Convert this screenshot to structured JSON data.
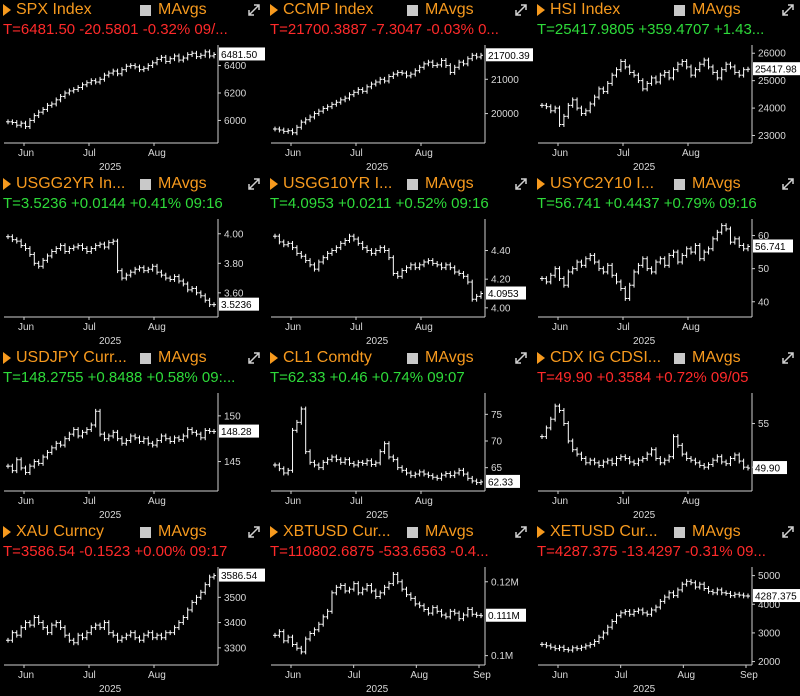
{
  "panels": [
    {
      "ticker": "SPX Index",
      "mavgs": "MAvgs",
      "quote": "T=6481.50 -20.5801 -0.32% 09/...",
      "dir": "dn",
      "y_ticks": [
        "6400",
        "6200",
        "6000"
      ],
      "y_vals": [
        6400,
        6200,
        6000
      ],
      "x_ticks": [
        "Jun",
        "Jul",
        "Aug"
      ],
      "year": "2025",
      "price_label": "6481.50",
      "ylim": [
        5850,
        6550
      ],
      "series": [
        5990,
        5985,
        5965,
        5980,
        5955,
        6000,
        6035,
        6060,
        6080,
        6110,
        6120,
        6150,
        6175,
        6200,
        6215,
        6225,
        6240,
        6260,
        6275,
        6290,
        6280,
        6300,
        6330,
        6345,
        6360,
        6340,
        6370,
        6395,
        6400,
        6390,
        6370,
        6380,
        6400,
        6420,
        6445,
        6460,
        6430,
        6450,
        6470,
        6440,
        6455,
        6480,
        6490,
        6465,
        6475,
        6500,
        6470,
        6481
      ]
    },
    {
      "ticker": "CCMP Index",
      "mavgs": "MAvgs",
      "quote": "T=21700.3887 -7.3047 -0.03% 0...",
      "dir": "dn",
      "y_ticks": [
        "21000",
        "20000"
      ],
      "y_vals": [
        21000,
        20000
      ],
      "x_ticks": [
        "Jun",
        "Jul",
        "Aug"
      ],
      "year": "2025",
      "price_label": "21700.39",
      "ylim": [
        19200,
        22000
      ],
      "series": [
        19550,
        19520,
        19480,
        19500,
        19440,
        19600,
        19750,
        19820,
        19900,
        20000,
        20070,
        20150,
        20200,
        20270,
        20330,
        20400,
        20450,
        20550,
        20620,
        20700,
        20650,
        20780,
        20860,
        20920,
        21000,
        20950,
        21080,
        21150,
        21200,
        21180,
        21100,
        21150,
        21250,
        21350,
        21450,
        21500,
        21400,
        21420,
        21550,
        21400,
        21200,
        21350,
        21500,
        21450,
        21600,
        21700,
        21650,
        21700
      ]
    },
    {
      "ticker": "HSI Index",
      "mavgs": "MAvgs",
      "quote": "T=25417.9805 +359.4707 +1.43...",
      "dir": "up",
      "y_ticks": [
        "26000",
        "25000",
        "24000",
        "23000"
      ],
      "y_vals": [
        26000,
        25000,
        24000,
        23000
      ],
      "x_ticks": [
        "Jun",
        "Jul",
        "Aug"
      ],
      "year": "2025",
      "price_label": "25417.98",
      "ylim": [
        22800,
        26300
      ],
      "series": [
        24100,
        24050,
        23900,
        24000,
        23400,
        23700,
        24100,
        24300,
        24000,
        23800,
        23900,
        24150,
        24400,
        24700,
        24600,
        24900,
        25200,
        25400,
        25700,
        25500,
        25300,
        25200,
        25000,
        24700,
        24900,
        25100,
        24950,
        25200,
        25300,
        25100,
        25400,
        25600,
        25700,
        25500,
        25200,
        25400,
        25600,
        25750,
        25500,
        25300,
        25100,
        25400,
        25600,
        25500,
        25300,
        25200,
        25400,
        25418
      ]
    },
    {
      "ticker": "USGG2YR In...",
      "mavgs": "MAvgs",
      "quote": "T=3.5236 +0.0144 +0.41% 09:16",
      "dir": "up",
      "y_ticks": [
        "4.00",
        "3.80",
        "3.60"
      ],
      "y_vals": [
        4.0,
        3.8,
        3.6
      ],
      "x_ticks": [
        "Jun",
        "Jul",
        "Aug"
      ],
      "year": "2025",
      "price_label": "3.5236",
      "ylim": [
        3.45,
        4.1
      ],
      "series": [
        3.98,
        3.96,
        3.95,
        3.92,
        3.9,
        3.86,
        3.8,
        3.78,
        3.82,
        3.85,
        3.88,
        3.9,
        3.92,
        3.88,
        3.9,
        3.91,
        3.92,
        3.9,
        3.88,
        3.9,
        3.92,
        3.93,
        3.91,
        3.94,
        3.95,
        3.75,
        3.7,
        3.72,
        3.74,
        3.76,
        3.77,
        3.75,
        3.76,
        3.78,
        3.74,
        3.72,
        3.7,
        3.69,
        3.71,
        3.68,
        3.66,
        3.62,
        3.63,
        3.6,
        3.58,
        3.55,
        3.52,
        3.52
      ]
    },
    {
      "ticker": "USGG10YR I...",
      "mavgs": "MAvgs",
      "quote": "T=4.0953 +0.0211 +0.52% 09:16",
      "dir": "up",
      "y_ticks": [
        "4.40",
        "4.20",
        "4.00"
      ],
      "y_vals": [
        4.4,
        4.2,
        4.0
      ],
      "x_ticks": [
        "Jun",
        "Jul",
        "Aug"
      ],
      "year": "2025",
      "price_label": "4.0953",
      "ylim": [
        3.95,
        4.62
      ],
      "series": [
        4.5,
        4.46,
        4.44,
        4.45,
        4.42,
        4.38,
        4.36,
        4.33,
        4.3,
        4.27,
        4.32,
        4.35,
        4.38,
        4.4,
        4.42,
        4.45,
        4.47,
        4.5,
        4.48,
        4.45,
        4.42,
        4.4,
        4.38,
        4.4,
        4.42,
        4.4,
        4.35,
        4.24,
        4.22,
        4.26,
        4.28,
        4.3,
        4.28,
        4.3,
        4.32,
        4.33,
        4.31,
        4.3,
        4.28,
        4.3,
        4.28,
        4.25,
        4.24,
        4.22,
        4.18,
        4.06,
        4.08,
        4.1
      ]
    },
    {
      "ticker": "USYC2Y10 I...",
      "mavgs": "MAvgs",
      "quote": "T=56.741 +0.4437 +0.79% 09:16",
      "dir": "up",
      "y_ticks": [
        "60",
        "50",
        "40"
      ],
      "y_vals": [
        60,
        50,
        40
      ],
      "x_ticks": [
        "Jun",
        "Jul",
        "Aug"
      ],
      "year": "2025",
      "price_label": "56.741",
      "ylim": [
        36,
        65
      ],
      "series": [
        47,
        46,
        48,
        50,
        47,
        45,
        49,
        50,
        52,
        51,
        53,
        54,
        52,
        50,
        49,
        51,
        48,
        46,
        44,
        41,
        45,
        49,
        51,
        53,
        50,
        49,
        52,
        53,
        51,
        54,
        55,
        52,
        54,
        56,
        55,
        57,
        53,
        55,
        56,
        59,
        61,
        63,
        62,
        58,
        59,
        57,
        56,
        56.7
      ]
    },
    {
      "ticker": "USDJPY Curr...",
      "mavgs": "MAvgs",
      "quote": "T=148.2755 +0.8488 +0.58% 09:...",
      "dir": "up",
      "y_ticks": [
        "150",
        "145"
      ],
      "y_vals": [
        150,
        145
      ],
      "x_ticks": [
        "Jun",
        "Jul",
        "Aug"
      ],
      "year": "2025",
      "price_label": "148.28",
      "ylim": [
        142,
        152.5
      ],
      "series": [
        144.5,
        144,
        145.2,
        144.3,
        143.8,
        144.5,
        145.0,
        144.8,
        145.5,
        146.0,
        146.5,
        147.0,
        146.8,
        147.5,
        148.0,
        148.5,
        147.8,
        148.2,
        148.5,
        149.0,
        150.5,
        148.0,
        147.5,
        147.8,
        148.2,
        147.5,
        147.0,
        147.3,
        147.8,
        147.6,
        147.2,
        147.5,
        147.0,
        146.8,
        147.3,
        147.8,
        147.5,
        147.2,
        147.6,
        147.4,
        147.8,
        148.5,
        148.2,
        148.0,
        147.6,
        148.4,
        148.3,
        148.28
      ]
    },
    {
      "ticker": "CL1 Comdty",
      "mavgs": "MAvgs",
      "quote": "T=62.33 +0.46 +0.74% 09:07",
      "dir": "up",
      "y_ticks": [
        "75",
        "70",
        "65"
      ],
      "y_vals": [
        75,
        70,
        65
      ],
      "x_ticks": [
        "Jun",
        "Jul",
        "Aug"
      ],
      "year": "2025",
      "price_label": "62.33",
      "ylim": [
        61,
        79
      ],
      "series": [
        65.5,
        64.8,
        64.0,
        64.5,
        72.0,
        73.5,
        76.0,
        68.0,
        66.0,
        65.5,
        65.0,
        66.0,
        66.5,
        67.0,
        66.5,
        66.0,
        66.5,
        65.8,
        65.5,
        66.0,
        65.8,
        66.3,
        65.6,
        65.9,
        68.0,
        69.5,
        67.0,
        66.5,
        65.0,
        64.5,
        64.0,
        63.5,
        63.8,
        64.2,
        63.8,
        63.5,
        63.2,
        63.0,
        63.6,
        63.9,
        63.5,
        64.0,
        64.5,
        63.8,
        63.0,
        62.5,
        62.2,
        62.33
      ]
    },
    {
      "ticker": "CDX IG CDSI...",
      "mavgs": "MAvgs",
      "quote": "T=49.90 +0.3584 +0.72% 09/05",
      "dir": "dn",
      "y_ticks": [
        "55",
        "50"
      ],
      "y_vals": [
        55,
        50
      ],
      "x_ticks": [
        "Jun",
        "Jul",
        "Aug"
      ],
      "year": "2025",
      "price_label": "49.90",
      "ylim": [
        47.5,
        58.5
      ],
      "series": [
        53.5,
        54.5,
        55.5,
        57.0,
        56.5,
        55.0,
        53.0,
        52.0,
        51.5,
        51.0,
        50.5,
        50.8,
        50.5,
        50.2,
        50.6,
        50.8,
        50.4,
        51.0,
        51.2,
        51.0,
        50.6,
        50.4,
        50.8,
        51.0,
        51.5,
        52.0,
        51.0,
        50.5,
        50.8,
        51.2,
        53.5,
        52.5,
        51.5,
        51.0,
        50.8,
        50.5,
        50.2,
        50.0,
        50.3,
        50.8,
        51.2,
        50.6,
        50.4,
        51.0,
        51.4,
        50.7,
        50.0,
        49.9
      ]
    },
    {
      "ticker": "XAU Curncy",
      "mavgs": "MAvgs",
      "quote": "T=3586.54 -0.1523 +0.00% 09:17",
      "dir": "dn",
      "y_ticks": [
        "3500",
        "3400",
        "3300"
      ],
      "y_vals": [
        3500,
        3400,
        3300
      ],
      "x_ticks": [
        "Jun",
        "Jul",
        "Aug"
      ],
      "year": "2025",
      "price_label": "3586.54",
      "ylim": [
        3240,
        3620
      ],
      "series": [
        3330,
        3360,
        3350,
        3380,
        3400,
        3390,
        3420,
        3400,
        3380,
        3360,
        3390,
        3400,
        3380,
        3350,
        3330,
        3320,
        3350,
        3340,
        3360,
        3380,
        3390,
        3380,
        3400,
        3360,
        3350,
        3330,
        3340,
        3350,
        3360,
        3340,
        3330,
        3350,
        3360,
        3340,
        3350,
        3340,
        3360,
        3360,
        3380,
        3400,
        3420,
        3450,
        3480,
        3500,
        3520,
        3550,
        3580,
        3586
      ]
    },
    {
      "ticker": "XBTUSD Cur...",
      "mavgs": "MAvgs",
      "quote": "T=110802.6875 -533.6563 -0.4...",
      "dir": "dn",
      "y_ticks": [
        "0.12M",
        "0.1M"
      ],
      "y_vals": [
        120000,
        100000
      ],
      "x_ticks": [
        "Jun",
        "Jul",
        "Aug",
        "Sep"
      ],
      "year": "2025",
      "price_label": "0.111M",
      "ylim": [
        98000,
        124000
      ],
      "series": [
        105500,
        106500,
        104000,
        105000,
        103000,
        102000,
        101000,
        104500,
        106000,
        107000,
        108500,
        110500,
        112000,
        117000,
        118500,
        119000,
        117500,
        118000,
        119500,
        117000,
        118000,
        119000,
        117500,
        116000,
        117000,
        118500,
        119500,
        122000,
        120000,
        118000,
        116500,
        115500,
        114000,
        113500,
        112500,
        111500,
        113000,
        112000,
        111000,
        110500,
        112000,
        111500,
        110000,
        111000,
        112500,
        111200,
        110900,
        110800
      ]
    },
    {
      "ticker": "XETUSD Cur...",
      "mavgs": "MAvgs",
      "quote": "T=4287.375 -13.4297 -0.31% 09...",
      "dir": "dn",
      "y_ticks": [
        "5000",
        "4000",
        "3000",
        "2000"
      ],
      "y_vals": [
        5000,
        4000,
        3000,
        2000
      ],
      "x_ticks": [
        "Jun",
        "Jul",
        "Aug",
        "Sep"
      ],
      "year": "2025",
      "price_label": "4287.375",
      "ylim": [
        1950,
        5300
      ],
      "series": [
        2600,
        2550,
        2500,
        2450,
        2500,
        2420,
        2400,
        2480,
        2450,
        2500,
        2550,
        2600,
        2700,
        2850,
        3000,
        3200,
        3400,
        3600,
        3700,
        3750,
        3650,
        3750,
        3800,
        3700,
        3650,
        3800,
        3900,
        4100,
        4250,
        4400,
        4300,
        4500,
        4700,
        4800,
        4750,
        4600,
        4700,
        4550,
        4450,
        4400,
        4500,
        4400,
        4380,
        4300,
        4350,
        4320,
        4290,
        4287
      ]
    }
  ]
}
